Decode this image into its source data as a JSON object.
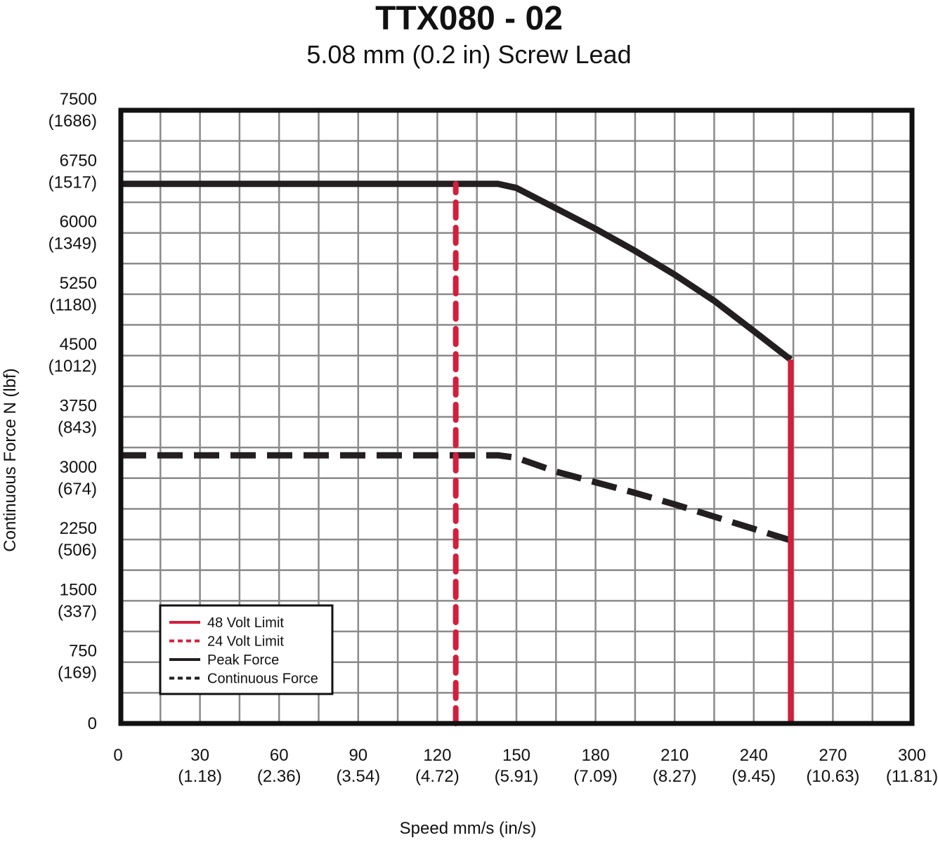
{
  "chart_data": {
    "type": "line",
    "title": "TTX080 - 02",
    "subtitle": "5.08 mm (0.2 in) Screw Lead",
    "xlabel": "Speed mm/s (in/s)",
    "ylabel": "Continuous Force N (lbf)",
    "xlim": [
      0,
      300
    ],
    "ylim": [
      0,
      7500
    ],
    "x_ticks": [
      {
        "value": 0,
        "label": "0",
        "sub": ""
      },
      {
        "value": 30,
        "label": "30",
        "sub": "(1.18)"
      },
      {
        "value": 60,
        "label": "60",
        "sub": "(2.36)"
      },
      {
        "value": 90,
        "label": "90",
        "sub": "(3.54)"
      },
      {
        "value": 120,
        "label": "120",
        "sub": "(4.72)"
      },
      {
        "value": 150,
        "label": "150",
        "sub": "(5.91)"
      },
      {
        "value": 180,
        "label": "180",
        "sub": "(7.09)"
      },
      {
        "value": 210,
        "label": "210",
        "sub": "(8.27)"
      },
      {
        "value": 240,
        "label": "240",
        "sub": "(9.45)"
      },
      {
        "value": 270,
        "label": "270",
        "sub": "(10.63)"
      },
      {
        "value": 300,
        "label": "300",
        "sub": "(11.81)"
      }
    ],
    "y_ticks": [
      {
        "value": 0,
        "label": "0",
        "sub": ""
      },
      {
        "value": 750,
        "label": "750",
        "sub": "(169)"
      },
      {
        "value": 1500,
        "label": "1500",
        "sub": "(337)"
      },
      {
        "value": 2250,
        "label": "2250",
        "sub": "(506)"
      },
      {
        "value": 3000,
        "label": "3000",
        "sub": "(674)"
      },
      {
        "value": 3750,
        "label": "3750",
        "sub": "(843)"
      },
      {
        "value": 4500,
        "label": "4500",
        "sub": "(1012)"
      },
      {
        "value": 5250,
        "label": "5250",
        "sub": "(1180)"
      },
      {
        "value": 6000,
        "label": "6000",
        "sub": "(1349)"
      },
      {
        "value": 6750,
        "label": "6750",
        "sub": "(1517)"
      },
      {
        "value": 7500,
        "label": "7500",
        "sub": "(1686)"
      }
    ],
    "grid_step_x": 15,
    "grid_step_y": 375,
    "grid": true,
    "legend_position": "bottom-left",
    "series": [
      {
        "name": "Peak Force",
        "style": "solid",
        "color": "#231f20",
        "x": [
          0,
          143,
          150,
          165,
          180,
          195,
          210,
          225,
          240,
          254
        ],
        "y": [
          6600,
          6600,
          6550,
          6300,
          6050,
          5780,
          5490,
          5170,
          4800,
          4450
        ]
      },
      {
        "name": "Continuous Force",
        "style": "dashed",
        "color": "#231f20",
        "x": [
          0,
          143,
          150,
          165,
          180,
          195,
          210,
          225,
          240,
          254
        ],
        "y": [
          3280,
          3280,
          3250,
          3080,
          2950,
          2820,
          2680,
          2530,
          2380,
          2240
        ]
      },
      {
        "name": "48 Volt Limit",
        "style": "solid",
        "color": "#d21f3c",
        "x": [
          254,
          254
        ],
        "y": [
          0,
          4450
        ]
      },
      {
        "name": "24 Volt Limit",
        "style": "dashed",
        "color": "#d21f3c",
        "x": [
          127,
          127
        ],
        "y": [
          0,
          6600
        ]
      }
    ],
    "legend": [
      {
        "label": "48 Volt Limit",
        "color": "#d21f3c",
        "style": "solid"
      },
      {
        "label": "24 Volt Limit",
        "color": "#d21f3c",
        "style": "dashed"
      },
      {
        "label": "Peak Force",
        "color": "#231f20",
        "style": "solid"
      },
      {
        "label": "Continuous Force",
        "color": "#231f20",
        "style": "dashed"
      }
    ]
  }
}
